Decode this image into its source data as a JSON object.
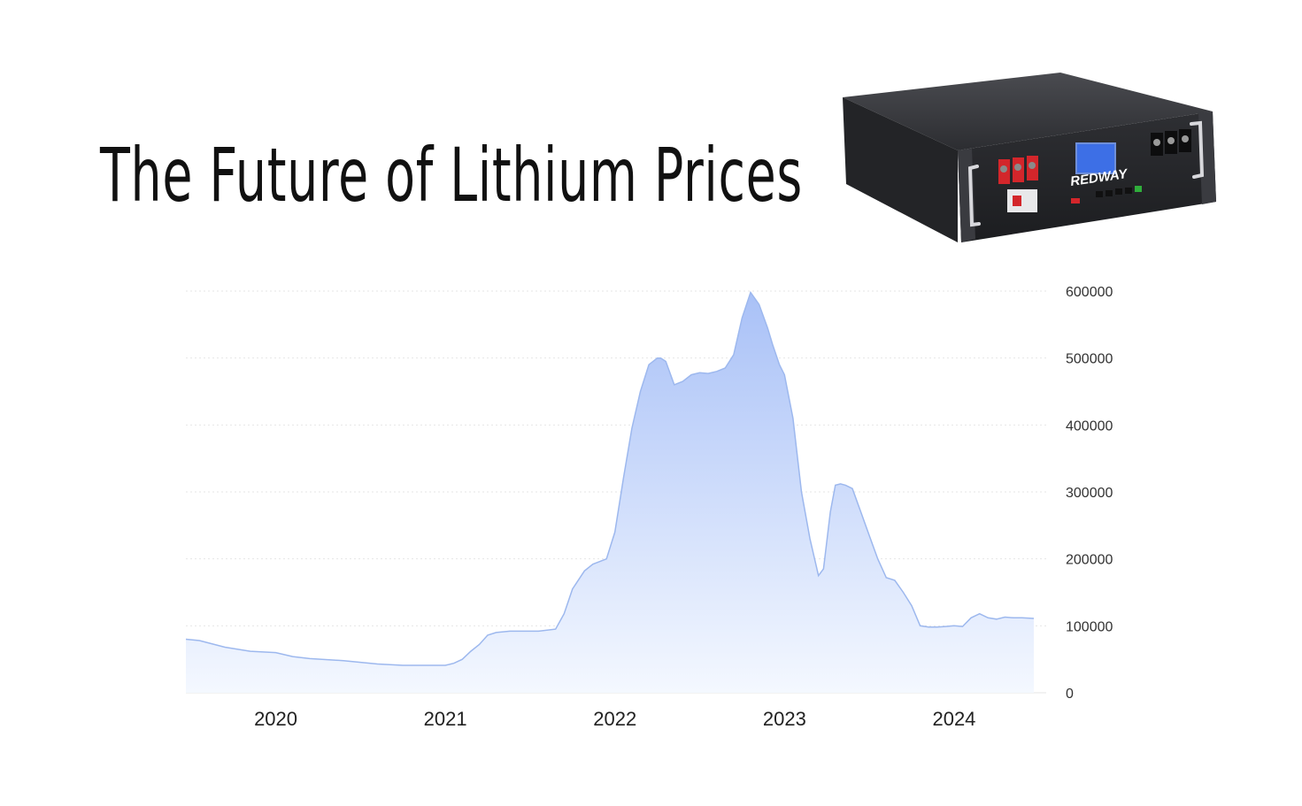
{
  "page": {
    "title": "The Future of Lithium Prices"
  },
  "product_image": {
    "brand": "REDWAY",
    "icon": "server-rack-battery-icon"
  },
  "colors": {
    "area_top": "#a9c1f7",
    "area_bottom": "#f4f8ff",
    "line": "#9db8ee",
    "grid": "#e6e6e6"
  },
  "chart_data": {
    "type": "area",
    "title": "",
    "xlabel": "",
    "ylabel": "",
    "x_tick_labels": [
      "2020",
      "2021",
      "2022",
      "2023",
      "2024"
    ],
    "y_tick_labels": [
      "0",
      "100000",
      "200000",
      "300000",
      "400000",
      "500000",
      "600000"
    ],
    "ylim": [
      0,
      600000
    ],
    "xlim": [
      2019.47,
      2024.47
    ],
    "grid": true,
    "legend": "none",
    "y_axis_position": "right",
    "series": [
      {
        "x": [
          2019.47,
          2019.55,
          2019.7,
          2019.85,
          2020.0,
          2020.1,
          2020.2,
          2020.4,
          2020.6,
          2020.75,
          2021.0,
          2021.05,
          2021.1,
          2021.15,
          2021.2,
          2021.25,
          2021.3,
          2021.38,
          2021.45,
          2021.55,
          2021.65,
          2021.7,
          2021.75,
          2021.82,
          2021.87,
          2021.95,
          2022.0,
          2022.05,
          2022.1,
          2022.15,
          2022.2,
          2022.25,
          2022.27,
          2022.3,
          2022.35,
          2022.4,
          2022.45,
          2022.5,
          2022.55,
          2022.6,
          2022.65,
          2022.7,
          2022.75,
          2022.8,
          2022.85,
          2022.9,
          2022.93,
          2022.97,
          2023.0,
          2023.05,
          2023.1,
          2023.15,
          2023.2,
          2023.23,
          2023.27,
          2023.3,
          2023.33,
          2023.36,
          2023.4,
          2023.45,
          2023.5,
          2023.55,
          2023.6,
          2023.65,
          2023.7,
          2023.75,
          2023.8,
          2023.85,
          2023.9,
          2023.95,
          2024.0,
          2024.05,
          2024.1,
          2024.15,
          2024.2,
          2024.25,
          2024.3,
          2024.35,
          2024.4,
          2024.47
        ],
        "values": [
          80000,
          78000,
          68000,
          62000,
          60000,
          54000,
          51000,
          48000,
          43000,
          41000,
          41000,
          44000,
          50000,
          62000,
          72000,
          86000,
          90000,
          92000,
          92000,
          92000,
          95000,
          118000,
          155000,
          182000,
          192000,
          200000,
          240000,
          320000,
          395000,
          450000,
          490000,
          500000,
          500000,
          495000,
          460000,
          465000,
          475000,
          478000,
          477000,
          480000,
          485000,
          505000,
          560000,
          598000,
          580000,
          545000,
          520000,
          490000,
          475000,
          410000,
          300000,
          230000,
          175000,
          185000,
          270000,
          310000,
          312000,
          310000,
          305000,
          270000,
          235000,
          200000,
          172000,
          168000,
          150000,
          130000,
          100000,
          98000,
          98000,
          99000,
          100000,
          99000,
          112000,
          118000,
          112000,
          110000,
          113000,
          112000,
          112000,
          111000
        ]
      }
    ]
  }
}
